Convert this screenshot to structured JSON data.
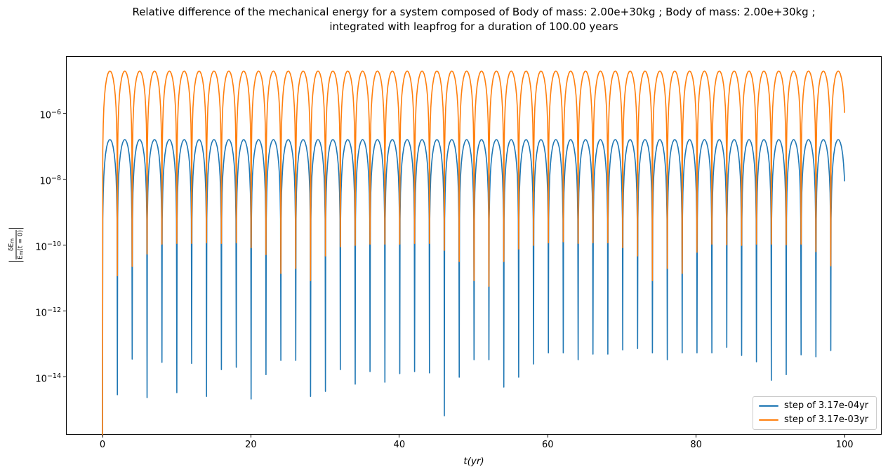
{
  "chart_data": {
    "type": "line",
    "yscale": "log",
    "grid": false,
    "title_line1": "Relative difference of the mechanical energy for a system composed of Body of mass: 2.00e+30kg ; Body of mass: 2.00e+30kg ;",
    "title_line2": "integrated with leapfrog for a duration of 100.00 years",
    "xlabel": "t(yr)",
    "ylabel": {
      "text": "|dE_m / E_m(t = 0)|",
      "numerator_main": "δE",
      "numerator_sub": "m",
      "denominator_main": "E",
      "denominator_sub": "m",
      "denominator_post": "(t = 0)"
    },
    "x_ticks": [
      0,
      20,
      40,
      60,
      80,
      100
    ],
    "y_tick_exponents": [
      -6,
      -8,
      -10,
      -12,
      -14
    ],
    "xlim": [
      -5,
      105
    ],
    "ylim_exponents": [
      -15.75,
      -4.28
    ],
    "t_end": 100,
    "legend_position": "lower right",
    "model_note": "value(t) = 10^peak_exp * sin(pi*t/period_yr)^2 per arc; at each period boundary k the curve dips to 10^spike_min_exponents[k-1]; value(0)=0 (line rises from below axis)",
    "series": [
      {
        "label": "step of 3.17e-04yr",
        "color": "#1f77b4",
        "period_yr": 2.003,
        "peak_exp": -6.81,
        "start_min_exp": -16.5,
        "spike_min_exponents": [
          -14.55,
          -13.47,
          -14.64,
          -13.57,
          -14.49,
          -13.6,
          -14.6,
          -13.79,
          -13.72,
          -14.68,
          -13.94,
          -13.51,
          -13.51,
          -14.6,
          -14.45,
          -13.79,
          -14.23,
          -13.85,
          -14.17,
          -13.91,
          -13.85,
          -13.89,
          -15.19,
          -14.02,
          -13.49,
          -13.49,
          -14.32,
          -14.02,
          -13.62,
          -13.28,
          -13.28,
          -13.49,
          -13.32,
          -13.32,
          -13.19,
          -13.15,
          -13.28,
          -13.49,
          -13.28,
          -13.28,
          -13.28,
          -13.11,
          -13.36,
          -13.55,
          -14.11,
          -13.94,
          -13.34,
          -13.4,
          -13.21
        ]
      },
      {
        "label": "step of 3.17e-03yr",
        "color": "#ff7f0e",
        "period_yr": 2.003,
        "peak_exp": -4.73,
        "start_min_exp": -16.5,
        "spike_min_exponents": [
          -10.94,
          -10.66,
          -10.28,
          -9.98,
          -9.96,
          -9.96,
          -9.94,
          -9.96,
          -9.94,
          -10.09,
          -10.3,
          -10.87,
          -10.72,
          -11.09,
          -10.34,
          -10.06,
          -10.02,
          -9.98,
          -9.98,
          -9.98,
          -9.96,
          -9.96,
          -10.17,
          -10.51,
          -11.09,
          -11.26,
          -10.51,
          -10.13,
          -10.02,
          -9.94,
          -9.91,
          -9.96,
          -9.94,
          -9.94,
          -10.09,
          -10.34,
          -11.09,
          -10.72,
          -10.87,
          -10.23,
          -9.98,
          -10.0,
          -10.02,
          -9.98,
          -9.98,
          -10.0,
          -9.98,
          -10.21,
          -10.64
        ]
      }
    ]
  }
}
